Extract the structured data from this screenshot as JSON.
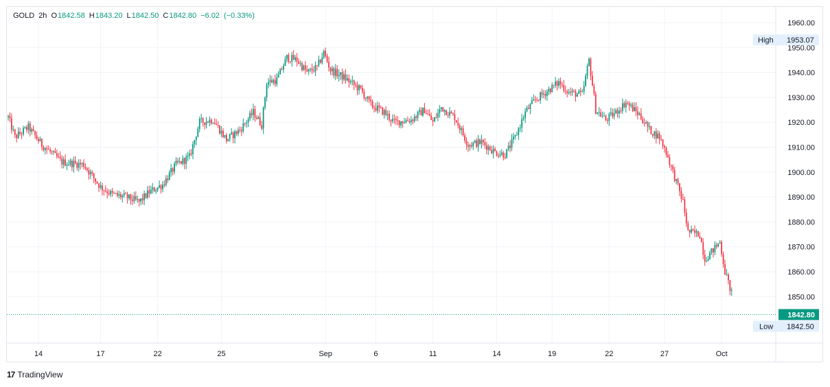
{
  "header": {
    "symbol": "GOLD",
    "interval": "2h",
    "open_label": "O",
    "open_value": "1842.58",
    "high_label": "H",
    "high_value": "1843.20",
    "low_label": "L",
    "low_value": "1842.50",
    "close_label": "C",
    "close_value": "1842.80",
    "change": "−6.02",
    "change_pct": "(−0.33%)"
  },
  "brand": {
    "name": "TradingView"
  },
  "colors": {
    "up": "#089981",
    "down": "#f23645",
    "grid": "#f0f3fa",
    "axis_text": "#131722",
    "last_price_bg": "#089981",
    "marker_bg": "#e3effd"
  },
  "markers": {
    "high": {
      "label": "High",
      "value": "1953.07"
    },
    "low": {
      "label": "Low",
      "value": "1842.50"
    },
    "last": {
      "value": "1842.80"
    }
  },
  "chart_data": {
    "type": "candlestick",
    "title": "GOLD, 2h",
    "xlabel": "",
    "ylabel": "",
    "ylim": [
      1836,
      1964
    ],
    "grid": true,
    "y_ticks": [
      "1960.00",
      "1950.00",
      "1940.00",
      "1930.00",
      "1920.00",
      "1910.00",
      "1900.00",
      "1890.00",
      "1880.00",
      "1870.00",
      "1860.00",
      "1850.00"
    ],
    "x_ticks": [
      "14",
      "17",
      "22",
      "25",
      "Sep",
      "6",
      "11",
      "14",
      "19",
      "22",
      "27",
      "Oct"
    ],
    "x_tick_bars": [
      18,
      55,
      89,
      127,
      189,
      219,
      253,
      291,
      324,
      358,
      391,
      425
    ],
    "bar_count": 432,
    "approx_close_path": [
      [
        0,
        1922
      ],
      [
        4,
        1914
      ],
      [
        12,
        1918
      ],
      [
        20,
        1911
      ],
      [
        32,
        1904
      ],
      [
        45,
        1903
      ],
      [
        55,
        1894
      ],
      [
        62,
        1891
      ],
      [
        70,
        1890
      ],
      [
        78,
        1888
      ],
      [
        84,
        1892
      ],
      [
        92,
        1895
      ],
      [
        100,
        1903
      ],
      [
        108,
        1906
      ],
      [
        114,
        1920
      ],
      [
        122,
        1921
      ],
      [
        130,
        1913
      ],
      [
        138,
        1917
      ],
      [
        146,
        1924
      ],
      [
        151,
        1919
      ],
      [
        154,
        1936
      ],
      [
        160,
        1937
      ],
      [
        166,
        1946
      ],
      [
        172,
        1945
      ],
      [
        178,
        1940
      ],
      [
        184,
        1942
      ],
      [
        188,
        1948
      ],
      [
        192,
        1941
      ],
      [
        200,
        1938
      ],
      [
        210,
        1933
      ],
      [
        216,
        1927
      ],
      [
        224,
        1924
      ],
      [
        230,
        1920
      ],
      [
        240,
        1921
      ],
      [
        248,
        1925
      ],
      [
        253,
        1920
      ],
      [
        258,
        1926
      ],
      [
        266,
        1922
      ],
      [
        274,
        1911
      ],
      [
        282,
        1912
      ],
      [
        290,
        1908
      ],
      [
        296,
        1907
      ],
      [
        302,
        1914
      ],
      [
        308,
        1924
      ],
      [
        314,
        1929
      ],
      [
        322,
        1933
      ],
      [
        328,
        1936
      ],
      [
        334,
        1932
      ],
      [
        342,
        1931
      ],
      [
        346,
        1945
      ],
      [
        350,
        1925
      ],
      [
        356,
        1921
      ],
      [
        362,
        1924
      ],
      [
        368,
        1928
      ],
      [
        376,
        1923
      ],
      [
        382,
        1917
      ],
      [
        388,
        1914
      ],
      [
        392,
        1908
      ],
      [
        398,
        1896
      ],
      [
        402,
        1888
      ],
      [
        405,
        1876
      ],
      [
        412,
        1875
      ],
      [
        415,
        1865
      ],
      [
        419,
        1868
      ],
      [
        424,
        1872
      ],
      [
        427,
        1860
      ],
      [
        432,
        1849
      ]
    ]
  }
}
